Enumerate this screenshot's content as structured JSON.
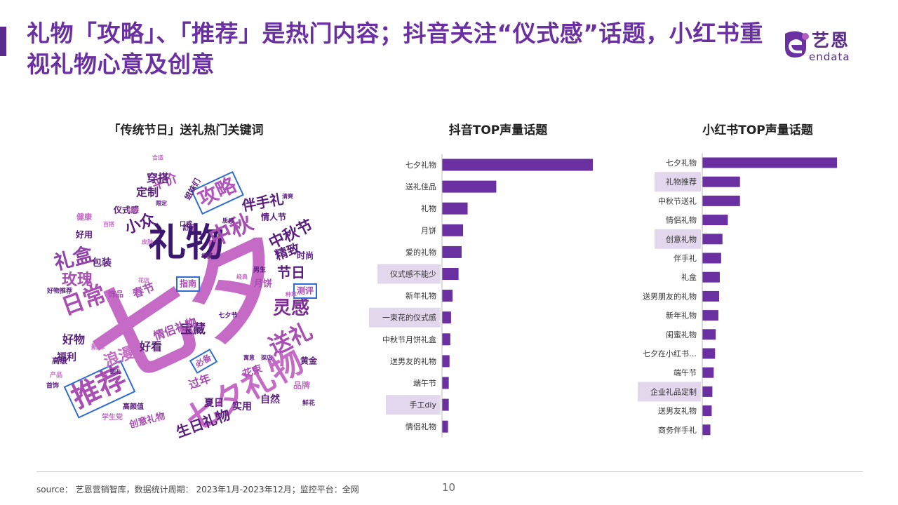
{
  "title": "礼物「攻略」、「推荐」是热门内容；抖音关注“仪式感”话题，小红书重视礼物心意及创意",
  "logo": {
    "cn": "艺恩",
    "en": "endata"
  },
  "colors": {
    "accent": "#6a2fa0",
    "bar": "#6a2fa0",
    "highlight": "#e3d7ee",
    "box": "#2f6cd0"
  },
  "wordcloud": {
    "title": "「传统节日」送礼热门关键词",
    "words": [
      {
        "text": "七夕",
        "size": 150,
        "color": "#c56bc6",
        "rot": -25
      },
      {
        "text": "礼物",
        "size": 54,
        "color": "#3d1670",
        "rot": 0
      },
      {
        "text": "七夕礼物",
        "size": 46,
        "color": "#c56bc6",
        "rot": -30
      },
      {
        "text": "推荐",
        "size": 40,
        "color": "#a94fb3",
        "rot": -25,
        "boxed": true
      },
      {
        "text": "中秋",
        "size": 32,
        "color": "#a94fb3",
        "rot": -25
      },
      {
        "text": "攻略",
        "size": 28,
        "color": "#b254bd",
        "rot": -25,
        "boxed": true
      },
      {
        "text": "日常",
        "size": 32,
        "color": "#a94fb3",
        "rot": -20
      },
      {
        "text": "礼盒",
        "size": 28,
        "color": "#8e44a8",
        "rot": -15
      },
      {
        "text": "送礼",
        "size": 32,
        "color": "#a94fb3",
        "rot": -25
      },
      {
        "text": "灵感",
        "size": 26,
        "color": "#7b2b93",
        "rot": 0
      },
      {
        "text": "中秋节",
        "size": 22,
        "color": "#5a1e7e",
        "rot": -25
      },
      {
        "text": "伴手礼",
        "size": 20,
        "color": "#5a1e7e",
        "rot": -10
      },
      {
        "text": "玫瑰",
        "size": 22,
        "color": "#a94fb3",
        "rot": 0
      },
      {
        "text": "浪漫",
        "size": 22,
        "color": "#c56bc6",
        "rot": -20
      },
      {
        "text": "小众",
        "size": 22,
        "color": "#5a1e7e",
        "rot": -20
      },
      {
        "text": "生日礼物",
        "size": 20,
        "color": "#5a1e7e",
        "rot": -20
      },
      {
        "text": "节日",
        "size": 20,
        "color": "#5a1e7e",
        "rot": 0
      },
      {
        "text": "精致",
        "size": 18,
        "color": "#5a1e7e",
        "rot": -20
      },
      {
        "text": "宝藏",
        "size": 18,
        "color": "#5a1e7e",
        "rot": 0
      },
      {
        "text": "情侣礼物",
        "size": 16,
        "color": "#a94fb3",
        "rot": -20
      },
      {
        "text": "春节",
        "size": 16,
        "color": "#a94fb3",
        "rot": -20
      },
      {
        "text": "好看",
        "size": 16,
        "color": "#5a1e7e",
        "rot": 0
      },
      {
        "text": "好物",
        "size": 16,
        "color": "#5a1e7e",
        "rot": 0
      },
      {
        "text": "平价",
        "size": 18,
        "color": "#a94fb3",
        "rot": -20
      },
      {
        "text": "穿搭",
        "size": 16,
        "color": "#5a1e7e",
        "rot": 0
      },
      {
        "text": "定制",
        "size": 16,
        "color": "#5a1e7e",
        "rot": 0
      },
      {
        "text": "过年",
        "size": 16,
        "color": "#a94fb3",
        "rot": -20
      },
      {
        "text": "包装",
        "size": 14,
        "color": "#5a1e7e",
        "rot": 0
      },
      {
        "text": "福利",
        "size": 14,
        "color": "#5a1e7e",
        "rot": 0
      },
      {
        "text": "实用",
        "size": 14,
        "color": "#5a1e7e",
        "rot": 0
      },
      {
        "text": "自然",
        "size": 14,
        "color": "#5a1e7e",
        "rot": 0
      },
      {
        "text": "夏日",
        "size": 14,
        "color": "#5a1e7e",
        "rot": 0
      },
      {
        "text": "花束",
        "size": 14,
        "color": "#a94fb3",
        "rot": -20
      },
      {
        "text": "黄金",
        "size": 12,
        "color": "#5a1e7e",
        "rot": 0
      },
      {
        "text": "品牌",
        "size": 12,
        "color": "#c56bc6",
        "rot": 0
      },
      {
        "text": "月饼",
        "size": 13,
        "color": "#a94fb3",
        "rot": 0
      },
      {
        "text": "创意礼物",
        "size": 13,
        "color": "#a94fb3",
        "rot": -15
      },
      {
        "text": "仪式感",
        "size": 12,
        "color": "#5a1e7e",
        "rot": 0
      },
      {
        "text": "好用",
        "size": 12,
        "color": "#5a1e7e",
        "rot": 0
      },
      {
        "text": "时尚",
        "size": 12,
        "color": "#5a1e7e",
        "rot": 0
      },
      {
        "text": "情人节",
        "size": 12,
        "color": "#5a1e7e",
        "rot": 0
      },
      {
        "text": "健康",
        "size": 11,
        "color": "#c56bc6",
        "rot": 0
      },
      {
        "text": "饰品",
        "size": 11,
        "color": "#a94fb3",
        "rot": 0
      },
      {
        "text": "高级",
        "size": 11,
        "color": "#5a1e7e",
        "rot": 0
      },
      {
        "text": "指南",
        "size": 12,
        "color": "#a94fb3",
        "rot": 0,
        "boxed": true
      },
      {
        "text": "必备",
        "size": 12,
        "color": "#a94fb3",
        "rot": -30,
        "boxed": true
      },
      {
        "text": "测评",
        "size": 12,
        "color": "#a94fb3",
        "rot": 0,
        "boxed": true
      },
      {
        "text": "姐妹们",
        "size": 11,
        "color": "#5a1e7e",
        "rot": -60
      },
      {
        "text": "新年",
        "size": 10,
        "color": "#c56bc6",
        "rot": 0
      },
      {
        "text": "七夕节",
        "size": 9,
        "color": "#5a1e7e",
        "rot": 0
      },
      {
        "text": "好物推荐",
        "size": 9,
        "color": "#5a1e7e",
        "rot": 0
      },
      {
        "text": "学生党",
        "size": 10,
        "color": "#c56bc6",
        "rot": 0
      },
      {
        "text": "高颜值",
        "size": 10,
        "color": "#5a1e7e",
        "rot": 0
      },
      {
        "text": "舒适",
        "size": 10,
        "color": "#5a1e7e",
        "rot": 0
      },
      {
        "text": "口感",
        "size": 9,
        "color": "#5a1e7e",
        "rot": 0
      },
      {
        "text": "男生",
        "size": 9,
        "color": "#5a1e7e",
        "rot": 0
      },
      {
        "text": "鲜花",
        "size": 9,
        "color": "#5a1e7e",
        "rot": 0
      },
      {
        "text": "首饰",
        "size": 9,
        "color": "#5a1e7e",
        "rot": 0
      },
      {
        "text": "产品",
        "size": 9,
        "color": "#c56bc6",
        "rot": 0
      },
      {
        "text": "清爽",
        "size": 8,
        "color": "#5a1e7e",
        "rot": 0
      },
      {
        "text": "皮肤",
        "size": 8,
        "color": "#c56bc6",
        "rot": 0
      },
      {
        "text": "细腻",
        "size": 8,
        "color": "#5a1e7e",
        "rot": 0
      },
      {
        "text": "质感",
        "size": 8,
        "color": "#5a1e7e",
        "rot": 0
      },
      {
        "text": "种草",
        "size": 8,
        "color": "#c56bc6",
        "rot": 0
      },
      {
        "text": "回礼",
        "size": 8,
        "color": "#5a1e7e",
        "rot": 0
      },
      {
        "text": "寓意",
        "size": 8,
        "color": "#5a1e7e",
        "rot": 0
      },
      {
        "text": "探店",
        "size": 8,
        "color": "#5a1e7e",
        "rot": 0
      },
      {
        "text": "百搭",
        "size": 8,
        "color": "#c56bc6",
        "rot": 0
      },
      {
        "text": "合适",
        "size": 8,
        "color": "#c56bc6",
        "rot": 0
      },
      {
        "text": "限定",
        "size": 8,
        "color": "#5a1e7e",
        "rot": 0
      },
      {
        "text": "材质",
        "size": 8,
        "color": "#c56bc6",
        "rot": 0
      },
      {
        "text": "花店",
        "size": 8,
        "color": "#c56bc6",
        "rot": 0
      },
      {
        "text": "经典",
        "size": 8,
        "color": "#c56bc6",
        "rot": 0
      }
    ]
  },
  "chart_data": [
    {
      "type": "bar",
      "title": "抖音TOP声量话题",
      "orientation": "horizontal",
      "categories": [
        "七夕礼物",
        "送礼佳品",
        "礼物",
        "月饼",
        "爱的礼物",
        "仪式感不能少",
        "新年礼物",
        "一束花的仪式感",
        "中秋节月饼礼盒",
        "送男友的礼物",
        "端午节",
        "手工diy",
        "情侣礼物"
      ],
      "values": [
        100,
        36,
        17,
        14,
        13,
        11,
        7,
        6,
        5.5,
        5,
        4.5,
        4.5,
        4
      ],
      "highlighted": [
        "仪式感不能少",
        "一束花的仪式感",
        "手工diy"
      ]
    },
    {
      "type": "bar",
      "title": "小红书TOP声量话题",
      "orientation": "horizontal",
      "categories": [
        "七夕礼物",
        "礼物推荐",
        "中秋节送礼",
        "情侣礼物",
        "创意礼物",
        "伴手礼",
        "礼盒",
        "送男朋友的礼物",
        "新年礼物",
        "闺蜜礼物",
        "七夕在小红书…",
        "端午节",
        "企业礼品定制",
        "送男友礼物",
        "商务伴手礼"
      ],
      "values": [
        100,
        28,
        28,
        19,
        15,
        14,
        13,
        12.5,
        12,
        10,
        9.5,
        8.5,
        7.5,
        7,
        6
      ],
      "highlighted": [
        "礼物推荐",
        "创意礼物",
        "企业礼品定制"
      ]
    }
  ],
  "footer": {
    "source": "source： 艺恩营销智库，数据统计周期： 2023年1月-2023年12月；监控平台：全网",
    "page": "10"
  }
}
